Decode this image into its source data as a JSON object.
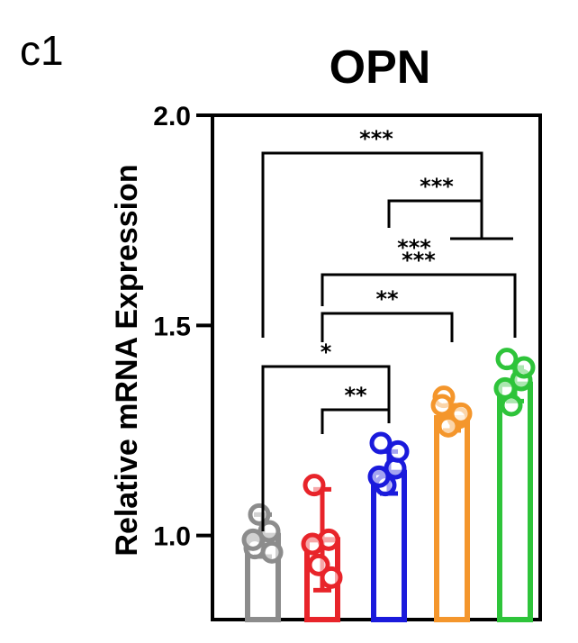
{
  "panel_label": "c1",
  "colors": {
    "axis": "#000000",
    "groups": [
      "#8c8c8c",
      "#e8242a",
      "#1a1adc",
      "#f4962c",
      "#2ec43a"
    ]
  },
  "chart_data": {
    "type": "bar",
    "title": "OPN",
    "xlabel": "",
    "ylabel": "Relative mRNA Expression",
    "ylim": [
      0.8,
      2.0
    ],
    "yticks": [
      1.0,
      1.5,
      2.0
    ],
    "ytick_labels": [
      "1.0",
      "1.5",
      "2.0"
    ],
    "grid": false,
    "legend": "none",
    "error_bars": "sd",
    "groups": [
      {
        "mean": 1.0,
        "sd": 0.05,
        "points": [
          0.97,
          1.01,
          1.05,
          0.96,
          0.99
        ]
      },
      {
        "mean": 0.99,
        "sd": 0.12,
        "points": [
          1.12,
          0.99,
          0.93,
          0.9,
          0.98
        ]
      },
      {
        "mean": 1.15,
        "sd": 0.05,
        "points": [
          1.22,
          1.16,
          1.12,
          1.2,
          1.14
        ]
      },
      {
        "mean": 1.28,
        "sd": 0.03,
        "points": [
          1.33,
          1.28,
          1.26,
          1.29,
          1.31
        ]
      },
      {
        "mean": 1.36,
        "sd": 0.04,
        "points": [
          1.42,
          1.37,
          1.31,
          1.4,
          1.35
        ]
      }
    ],
    "significance": [
      {
        "from": 1,
        "to": 2,
        "label": "**"
      },
      {
        "from": 0,
        "to": 2,
        "label": "*"
      },
      {
        "from": 1,
        "to": 3,
        "label": "**"
      },
      {
        "from": 1,
        "to": 4,
        "label": "***"
      },
      {
        "from": 2,
        "to_bracket": 5,
        "label": "***"
      },
      {
        "from": 0,
        "to_bracket": 3,
        "label": "***"
      }
    ]
  }
}
